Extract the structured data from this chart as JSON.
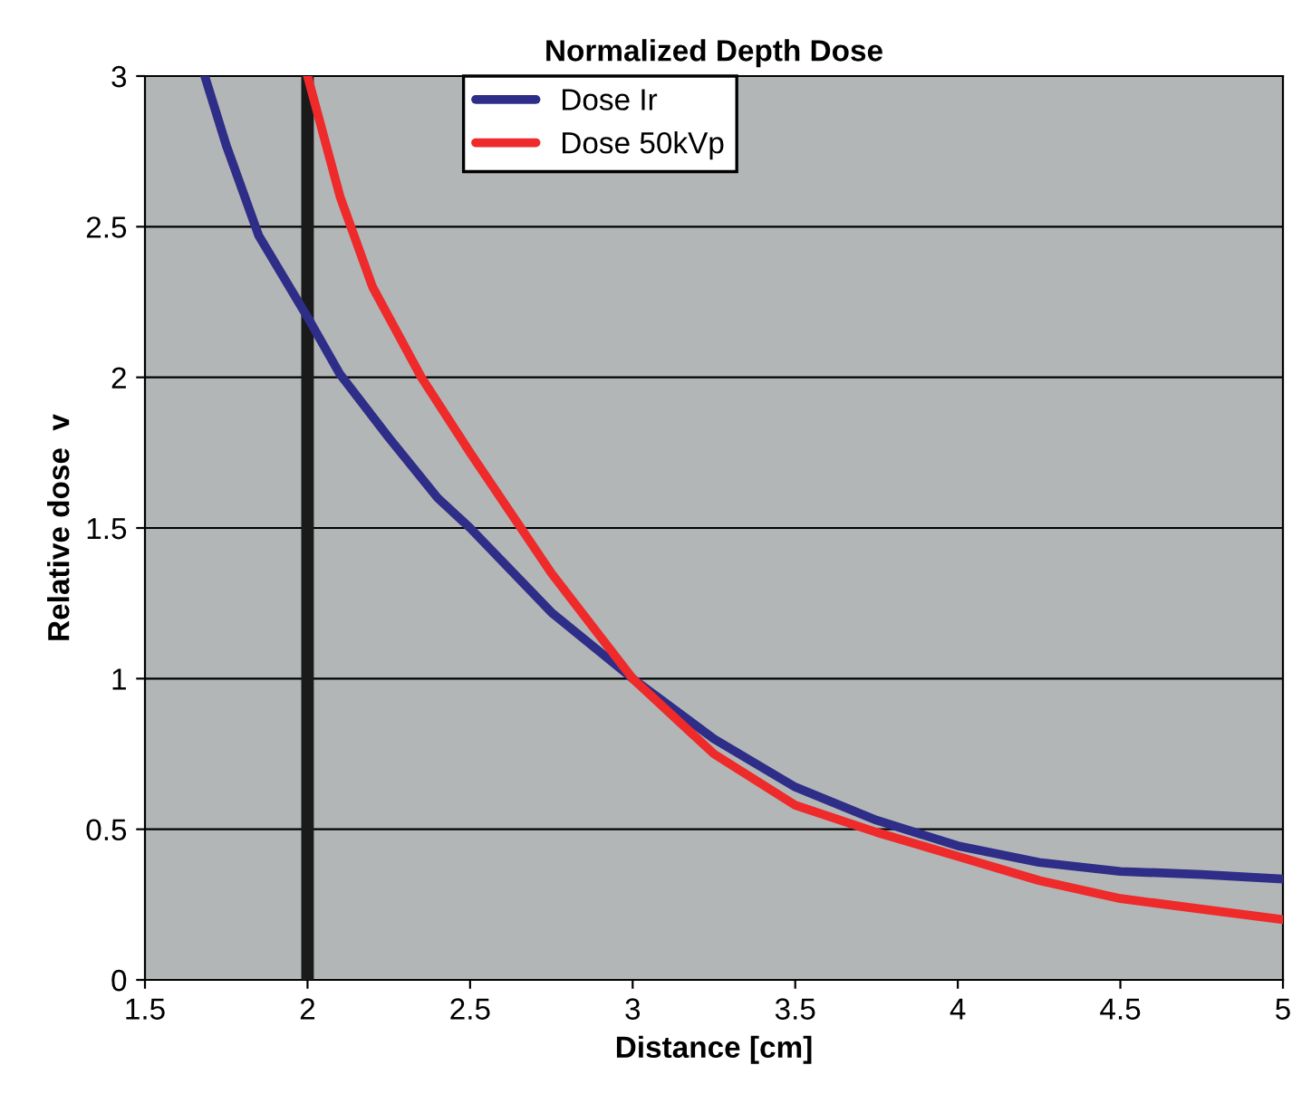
{
  "chart_data": {
    "type": "line",
    "title": "Normalized Depth Dose",
    "xlabel": "Distance [cm]",
    "ylabel": "Relative dose  v",
    "xlim": [
      1.5,
      5
    ],
    "ylim": [
      0,
      3
    ],
    "xticks": [
      1.5,
      2,
      2.5,
      3,
      3.5,
      4,
      4.5,
      5
    ],
    "yticks": [
      0,
      0.5,
      1,
      1.5,
      2,
      2.5,
      3
    ],
    "grid": "y",
    "legend": "top",
    "marker": "none",
    "line_style": "solid",
    "ref_lines": [
      {
        "axis": "x",
        "value": 2,
        "label": null,
        "color": "#1a1a1a"
      }
    ],
    "series": [
      {
        "name": "Dose Ir",
        "color": "#2e2d88",
        "x": [
          1.684,
          1.75,
          1.85,
          2,
          2.1,
          2.25,
          2.4,
          2.5,
          2.75,
          3,
          3.25,
          3.5,
          3.75,
          4,
          4.25,
          4.5,
          4.75,
          5
        ],
        "values": [
          3,
          2.77,
          2.47,
          2.2,
          2.01,
          1.8,
          1.6,
          1.5,
          1.22,
          1.0,
          0.8,
          0.64,
          0.53,
          0.445,
          0.39,
          0.36,
          0.35,
          0.335
        ]
      },
      {
        "name": "Dose 50kVp",
        "color": "#ee2a2a",
        "x": [
          2,
          2.05,
          2.1,
          2.2,
          2.35,
          2.5,
          2.75,
          3,
          3.25,
          3.5,
          3.75,
          4,
          4.25,
          4.5,
          4.75,
          5
        ],
        "values": [
          3,
          2.8,
          2.6,
          2.3,
          2.0,
          1.75,
          1.35,
          1.0,
          0.75,
          0.58,
          0.49,
          0.41,
          0.33,
          0.27,
          0.235,
          0.2
        ]
      }
    ]
  }
}
